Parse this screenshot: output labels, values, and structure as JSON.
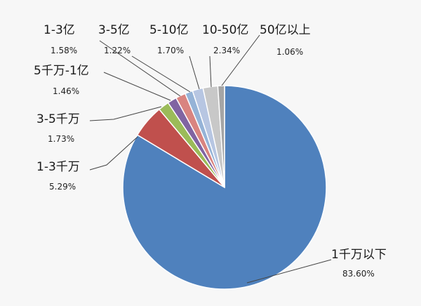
{
  "chart_data": {
    "type": "pie",
    "categories": [
      "1千万以下",
      "1-3千万",
      "3-5千万",
      "5千万-1亿",
      "1-3亿",
      "3-5亿",
      "5-10亿",
      "10-50亿",
      "50亿以上"
    ],
    "values": [
      83.6,
      5.29,
      1.73,
      1.46,
      1.58,
      1.22,
      1.7,
      2.34,
      1.06
    ],
    "percent_labels": [
      "83.60%",
      "5.29%",
      "1.73%",
      "1.46%",
      "1.58%",
      "1.22%",
      "1.70%",
      "2.34%",
      "1.06%"
    ],
    "colors": [
      "#4f81bd",
      "#c0504d",
      "#9bbb59",
      "#8064a2",
      "#d98480",
      "#95b3d7",
      "#b7c6e2",
      "#c8c8c8",
      "#a5a5a5"
    ],
    "start_angle_deg": 0,
    "direction": "clockwise",
    "legend": "none",
    "data_labels": "category-and-percent-with-leader-lines"
  }
}
